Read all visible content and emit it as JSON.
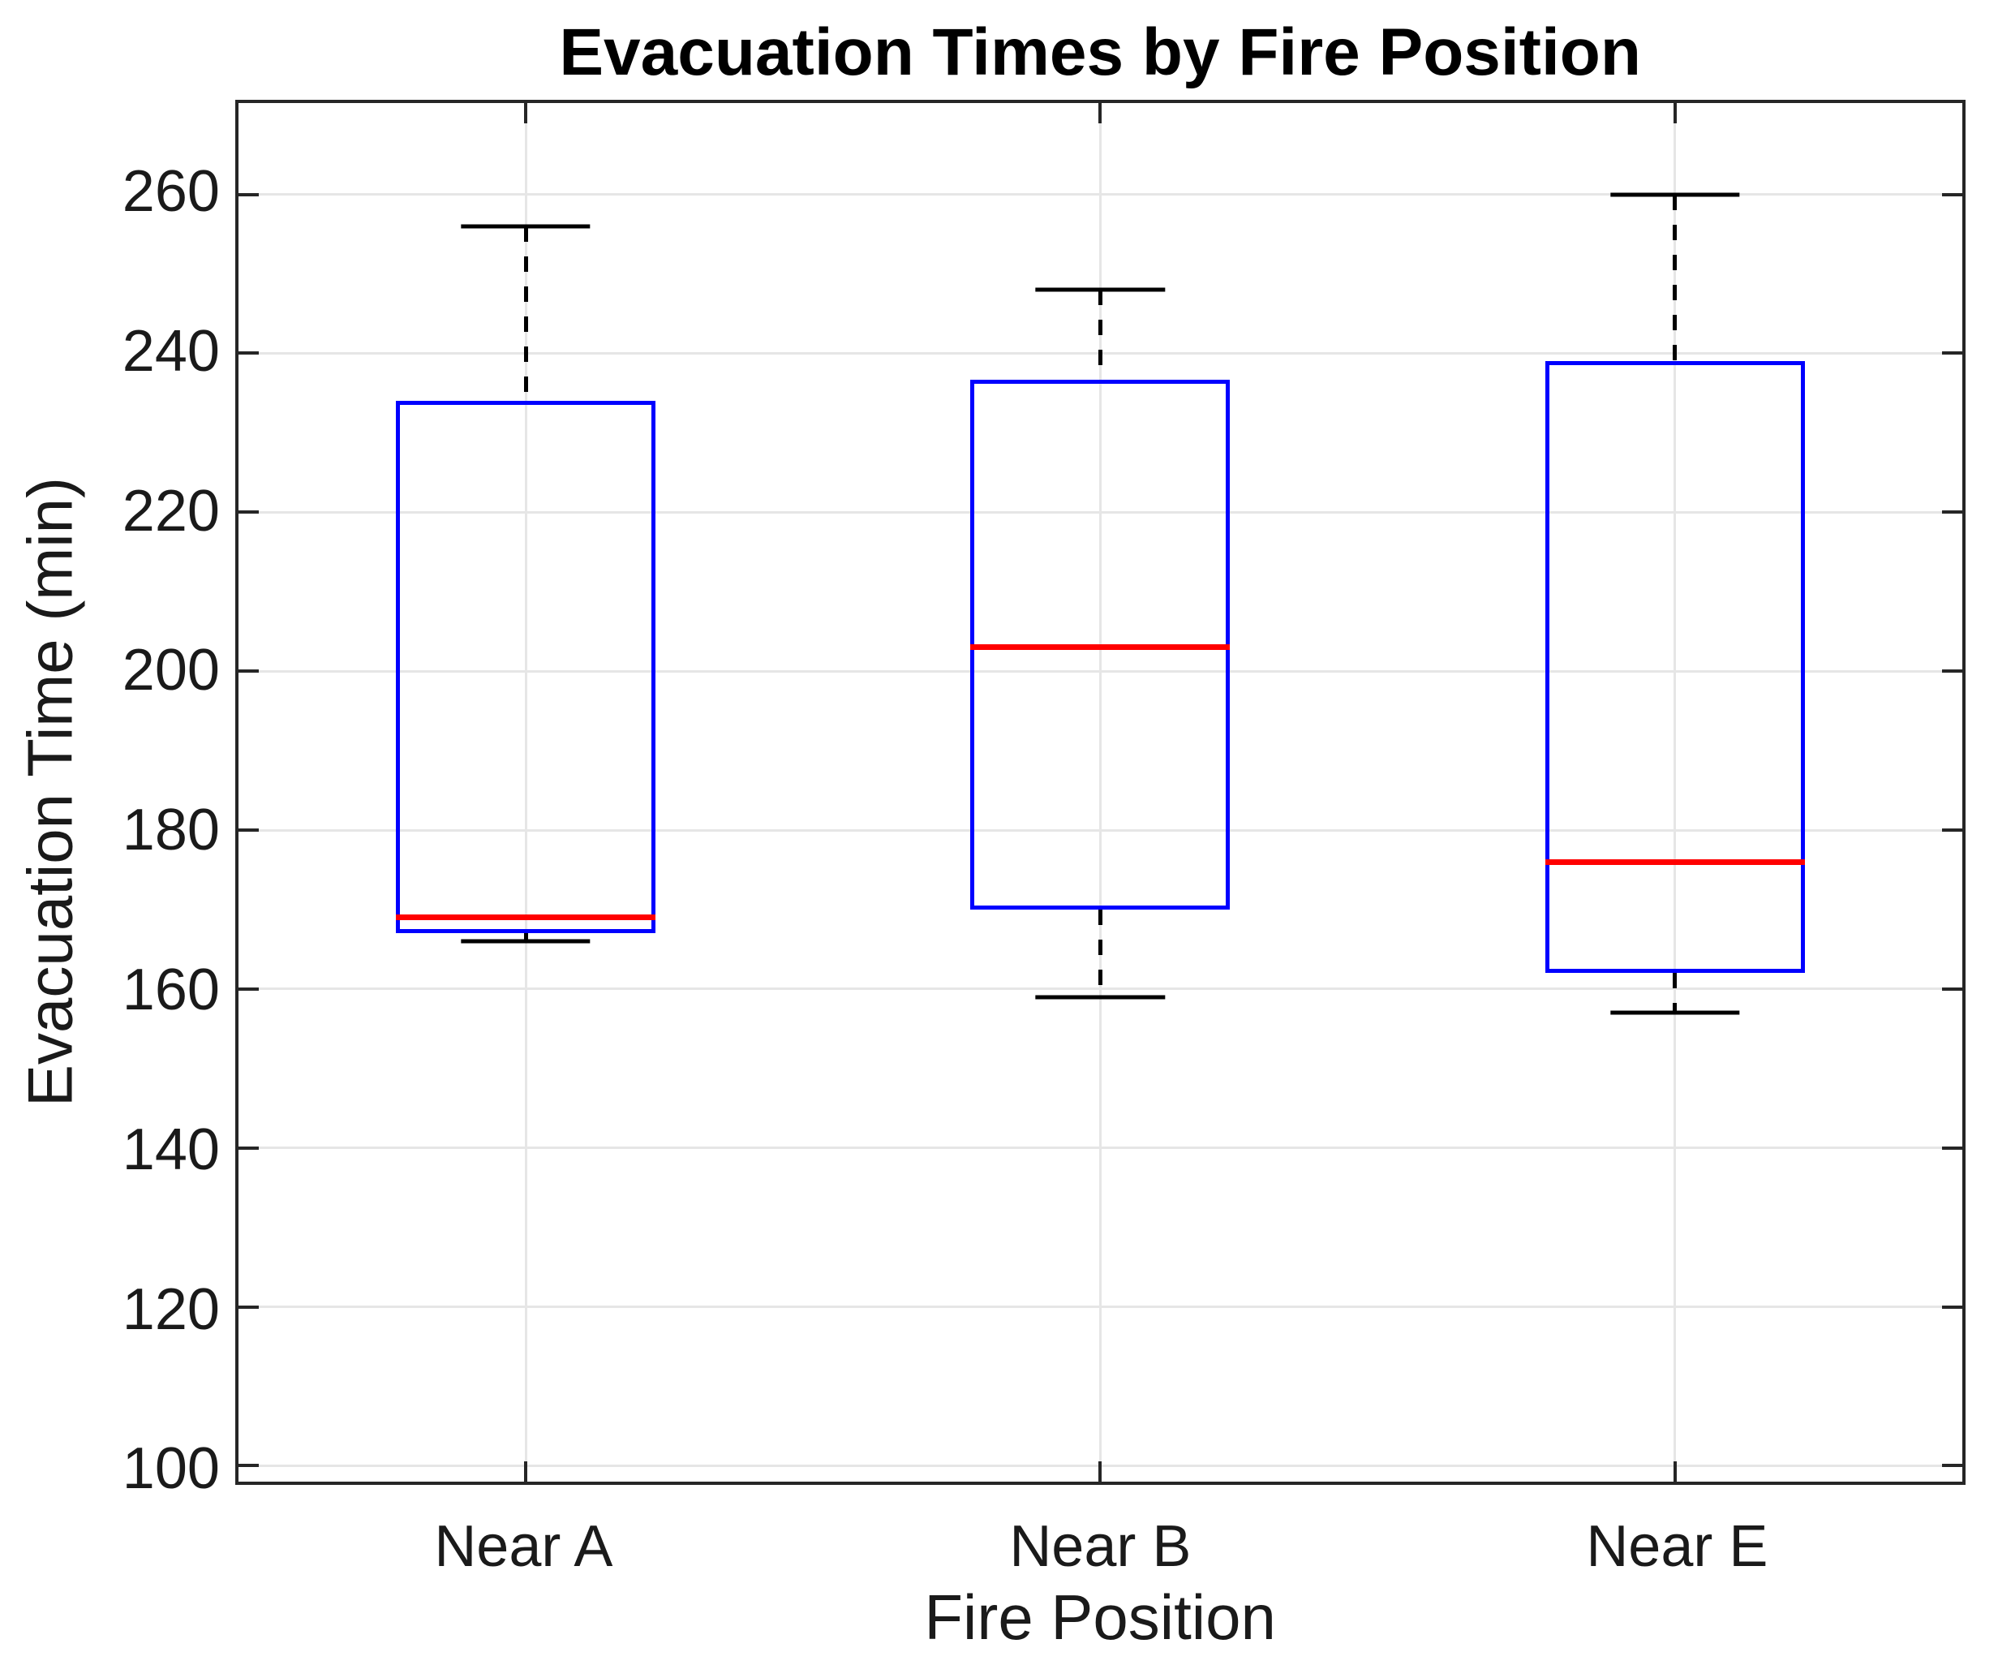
{
  "chart_data": {
    "type": "boxplot",
    "title": "Evacuation Times by Fire Position",
    "xlabel": "Fire Position",
    "ylabel": "Evacuation Time (min)",
    "categories": [
      "Near A",
      "Near B",
      "Near E"
    ],
    "series": [
      {
        "name": "Near A",
        "min": 166,
        "q1": 167,
        "median": 169,
        "q3": 234,
        "max": 256
      },
      {
        "name": "Near B",
        "min": 159,
        "q1": 170,
        "median": 203,
        "q3": 236.7,
        "max": 248
      },
      {
        "name": "Near E",
        "min": 157,
        "q1": 162,
        "median": 176,
        "q3": 239,
        "max": 260
      }
    ],
    "yticks": [
      100,
      120,
      140,
      160,
      180,
      200,
      220,
      240,
      260
    ],
    "ylim": [
      98,
      271.5
    ],
    "grid": true,
    "legend": null,
    "colors": {
      "box": "#0000ff",
      "median": "#ff0000",
      "whisker": "#000000",
      "grid": "#e6e6e6",
      "axis": "#262626",
      "tick_label": "#1a1a1a",
      "title": "#000000",
      "background": "#ffffff"
    }
  }
}
